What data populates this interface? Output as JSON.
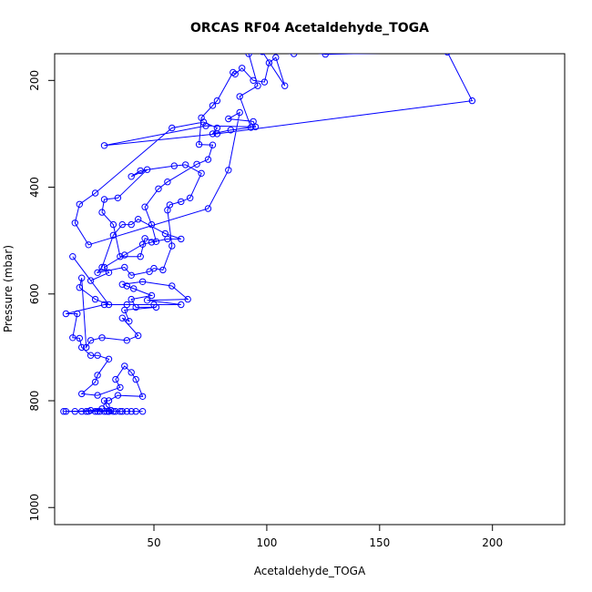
{
  "chart_data": {
    "type": "scatter",
    "title": "ORCAS RF04 Acetaldehyde_TOGA",
    "xlabel": "Acetaldehyde_TOGA",
    "ylabel": "Pressure (mbar)",
    "xlim": [
      6,
      232
    ],
    "ylim": [
      1032,
      150
    ],
    "y_reversed": true,
    "x_ticks": [
      50,
      100,
      150,
      200
    ],
    "y_ticks": [
      200,
      400,
      600,
      800,
      1000
    ],
    "grid": false,
    "legend": "none",
    "series_color": "#0000ff",
    "series": [
      {
        "values": [
          [
            45,
            820
          ],
          [
            40,
            820
          ],
          [
            35,
            820
          ],
          [
            30,
            820
          ],
          [
            25,
            820
          ],
          [
            20,
            820
          ],
          [
            15,
            820
          ],
          [
            22,
            818
          ],
          [
            27,
            815
          ],
          [
            24,
            820
          ],
          [
            30,
            820
          ],
          [
            26,
            820
          ],
          [
            33,
            820
          ],
          [
            38,
            820
          ],
          [
            42,
            820
          ],
          [
            36,
            820
          ],
          [
            28,
            820
          ],
          [
            21,
            820
          ],
          [
            18,
            820
          ],
          [
            32,
            820
          ],
          [
            29,
            820
          ],
          [
            11,
            820
          ],
          [
            10,
            820
          ],
          [
            31,
            818
          ],
          [
            29,
            810
          ],
          [
            28,
            800
          ],
          [
            30,
            800
          ],
          [
            34,
            790
          ],
          [
            45,
            792
          ],
          [
            42,
            760
          ],
          [
            40,
            747
          ],
          [
            37,
            735
          ],
          [
            33,
            760
          ],
          [
            35,
            775
          ],
          [
            25,
            790
          ],
          [
            18,
            787
          ],
          [
            24,
            765
          ],
          [
            25,
            752
          ],
          [
            30,
            722
          ],
          [
            25,
            715
          ],
          [
            22,
            715
          ],
          [
            18,
            700
          ],
          [
            17,
            683
          ],
          [
            14,
            682
          ],
          [
            16,
            637
          ],
          [
            11,
            637
          ],
          [
            28,
            620
          ],
          [
            38,
            620
          ],
          [
            50,
            620
          ],
          [
            62,
            620
          ],
          [
            47,
            612
          ],
          [
            65,
            610
          ],
          [
            58,
            585
          ],
          [
            45,
            577
          ],
          [
            36,
            582
          ],
          [
            41,
            590
          ],
          [
            38,
            585
          ],
          [
            49,
            603
          ],
          [
            40,
            610
          ],
          [
            42,
            625
          ],
          [
            51,
            625
          ],
          [
            37,
            630
          ],
          [
            39,
            651
          ],
          [
            36,
            645
          ],
          [
            43,
            678
          ],
          [
            38,
            687
          ],
          [
            27,
            682
          ],
          [
            22,
            687
          ],
          [
            20,
            700
          ],
          [
            18,
            570
          ],
          [
            17,
            588
          ],
          [
            24,
            610
          ],
          [
            30,
            620
          ],
          [
            14,
            530
          ],
          [
            22,
            575
          ],
          [
            30,
            560
          ],
          [
            28,
            550
          ],
          [
            37,
            527
          ],
          [
            45,
            507
          ],
          [
            49,
            503
          ],
          [
            56,
            497
          ],
          [
            62,
            497
          ],
          [
            55,
            487
          ],
          [
            43,
            460
          ],
          [
            40,
            470
          ],
          [
            36,
            470
          ],
          [
            32,
            490
          ],
          [
            27,
            550
          ],
          [
            25,
            560
          ],
          [
            37,
            550
          ],
          [
            40,
            565
          ],
          [
            48,
            558
          ],
          [
            50,
            552
          ],
          [
            54,
            555
          ],
          [
            58,
            510
          ],
          [
            56,
            443
          ],
          [
            57,
            433
          ],
          [
            62,
            427
          ],
          [
            66,
            420
          ],
          [
            71,
            374
          ],
          [
            64,
            358
          ],
          [
            59,
            360
          ],
          [
            44,
            369
          ],
          [
            40,
            380
          ],
          [
            47,
            367
          ],
          [
            34,
            420
          ],
          [
            28,
            423
          ],
          [
            27,
            447
          ],
          [
            32,
            470
          ],
          [
            35,
            530
          ],
          [
            44,
            530
          ],
          [
            46,
            496
          ],
          [
            51,
            502
          ],
          [
            49,
            470
          ],
          [
            46,
            437
          ],
          [
            52,
            403
          ],
          [
            56,
            390
          ],
          [
            69,
            357
          ],
          [
            74,
            348
          ],
          [
            76,
            321
          ],
          [
            70,
            320
          ],
          [
            71,
            270
          ],
          [
            76,
            247
          ],
          [
            78,
            238
          ],
          [
            85,
            185
          ],
          [
            86,
            188
          ],
          [
            89,
            177
          ],
          [
            94,
            200
          ],
          [
            99,
            203
          ],
          [
            101,
            167
          ],
          [
            104,
            157
          ],
          [
            108,
            210
          ],
          [
            98,
            146
          ],
          [
            112,
            150
          ],
          [
            106,
            140
          ],
          [
            126,
            151
          ],
          [
            180,
            147
          ],
          [
            191,
            238
          ],
          [
            78,
            300
          ],
          [
            28,
            322
          ],
          [
            73,
            285
          ],
          [
            95,
            287
          ],
          [
            94,
            277
          ],
          [
            83,
            272
          ],
          [
            88,
            260
          ],
          [
            83,
            368
          ],
          [
            74,
            440
          ],
          [
            21,
            508
          ],
          [
            15,
            467
          ],
          [
            17,
            432
          ],
          [
            24,
            411
          ],
          [
            58,
            289
          ],
          [
            72,
            278
          ],
          [
            78,
            289
          ],
          [
            76,
            300
          ],
          [
            84,
            293
          ],
          [
            93,
            288
          ],
          [
            88,
            230
          ],
          [
            96,
            210
          ],
          [
            92,
            150
          ],
          [
            118,
            140
          ]
        ]
      }
    ]
  }
}
